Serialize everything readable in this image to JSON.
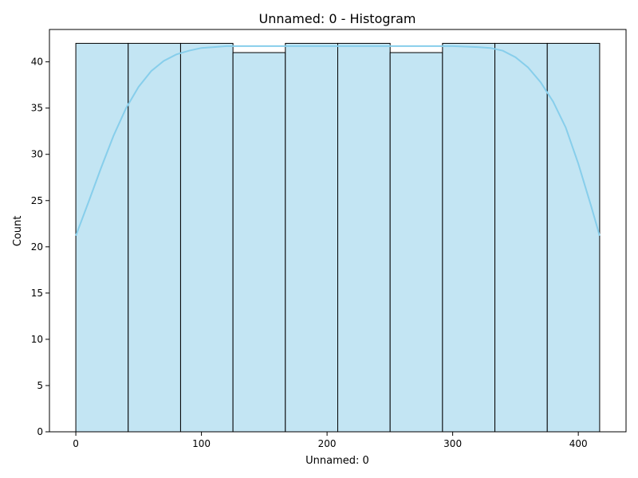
{
  "chart_data": {
    "type": "bar",
    "title": "Unnamed: 0 - Histogram",
    "xlabel": "Unnamed: 0",
    "ylabel": "Count",
    "bins": [
      {
        "start": 0,
        "end": 41.7,
        "count": 42
      },
      {
        "start": 41.7,
        "end": 83.4,
        "count": 42
      },
      {
        "start": 83.4,
        "end": 125.1,
        "count": 42
      },
      {
        "start": 125.1,
        "end": 166.8,
        "count": 41
      },
      {
        "start": 166.8,
        "end": 208.5,
        "count": 42
      },
      {
        "start": 208.5,
        "end": 250.2,
        "count": 42
      },
      {
        "start": 250.2,
        "end": 291.9,
        "count": 41
      },
      {
        "start": 291.9,
        "end": 333.6,
        "count": 42
      },
      {
        "start": 333.6,
        "end": 375.3,
        "count": 42
      },
      {
        "start": 375.3,
        "end": 417,
        "count": 42
      }
    ],
    "kde": {
      "x": [
        0,
        10,
        20,
        30,
        40,
        50,
        60,
        70,
        80,
        90,
        100,
        110,
        120,
        130,
        150,
        200,
        250,
        300,
        320,
        330,
        340,
        350,
        360,
        370,
        380,
        390,
        400,
        410,
        417
      ],
      "y": [
        21.2,
        24.8,
        28.5,
        32.0,
        35.0,
        37.3,
        39.0,
        40.1,
        40.8,
        41.2,
        41.5,
        41.6,
        41.7,
        41.7,
        41.7,
        41.7,
        41.7,
        41.7,
        41.6,
        41.5,
        41.2,
        40.5,
        39.4,
        37.8,
        35.7,
        32.9,
        29.0,
        24.5,
        21.2
      ]
    },
    "xlim": [
      -21,
      438
    ],
    "ylim": [
      0,
      43.5
    ],
    "xticks": [
      0,
      100,
      200,
      300,
      400
    ],
    "yticks": [
      0,
      5,
      10,
      15,
      20,
      25,
      30,
      35,
      40
    ],
    "colors": {
      "bar_fill": "#c3e5f3",
      "bar_edge": "#000000",
      "kde_line": "#87ceeb"
    },
    "grid": false,
    "legend": false
  }
}
